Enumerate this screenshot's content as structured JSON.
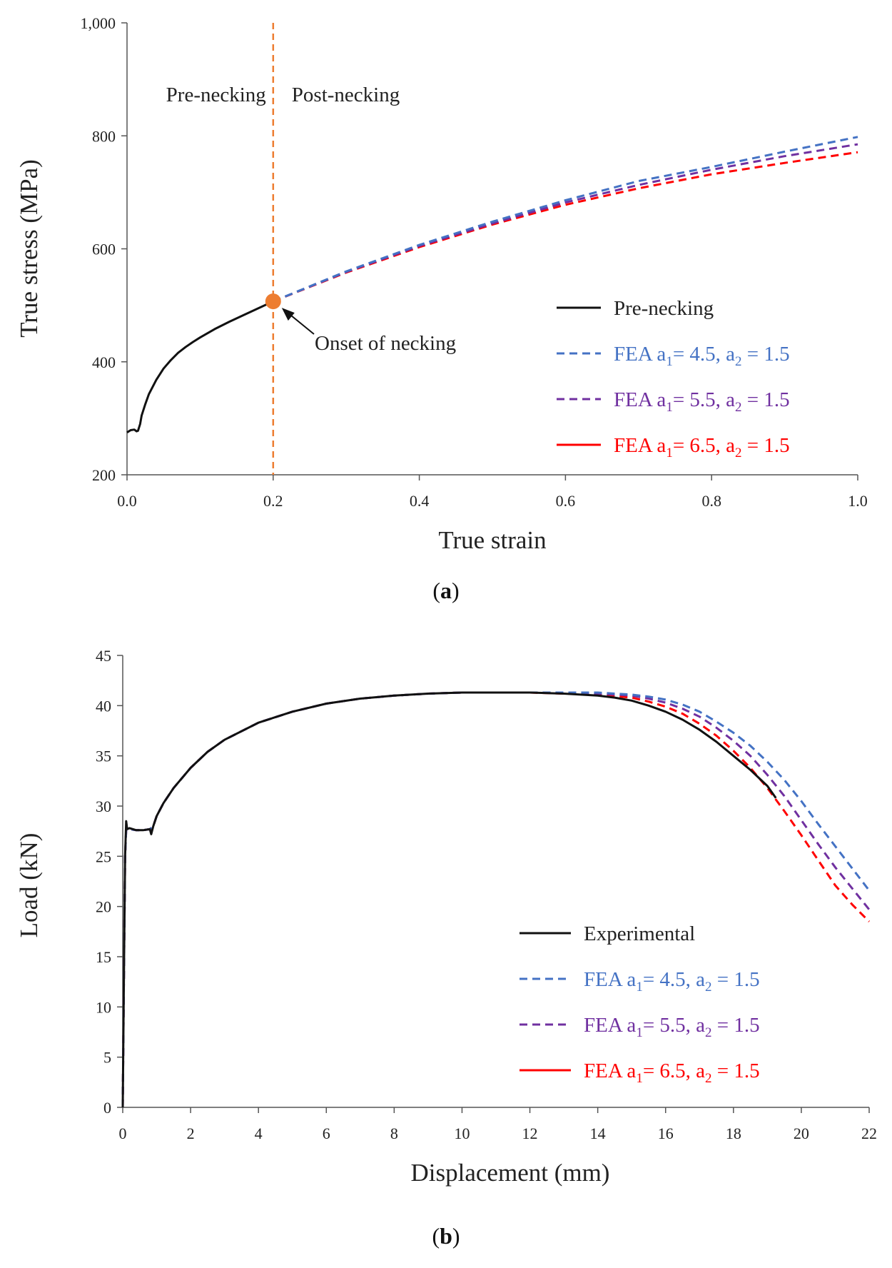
{
  "colors": {
    "black": "#111111",
    "blue": "#4472c4",
    "purple": "#7030a0",
    "red": "#ff0000",
    "orange": "#ed7d31"
  },
  "chart_data": [
    {
      "id": "a",
      "type": "line",
      "caption_label": "a",
      "xlabel": "True strain",
      "ylabel": "True stress (MPa)",
      "xlim": [
        0.0,
        1.0
      ],
      "ylim": [
        200,
        1000
      ],
      "x_ticks": [
        "0.0",
        "0.2",
        "0.4",
        "0.6",
        "0.8",
        "1.0"
      ],
      "x_tick_values": [
        0.0,
        0.2,
        0.4,
        0.6,
        0.8,
        1.0
      ],
      "y_ticks": [
        "200",
        "400",
        "600",
        "800",
        "1,000"
      ],
      "y_tick_values": [
        200,
        400,
        600,
        800,
        1000
      ],
      "region_labels": {
        "left": "Pre-necking",
        "right": "Post-necking"
      },
      "necking_line_x": 0.2,
      "necking_point": {
        "x": 0.2,
        "y": 507
      },
      "annotation": "Onset of necking",
      "series": [
        {
          "name": "Pre-necking",
          "legend": {
            "main": "Pre-necking",
            "parts": []
          },
          "color": "#111111",
          "dash": "solid",
          "x": [
            0.0,
            0.005,
            0.01,
            0.013,
            0.015,
            0.018,
            0.02,
            0.025,
            0.03,
            0.04,
            0.05,
            0.06,
            0.07,
            0.08,
            0.09,
            0.1,
            0.12,
            0.14,
            0.16,
            0.18,
            0.2
          ],
          "y": [
            275,
            279,
            280,
            277,
            278,
            290,
            305,
            325,
            343,
            368,
            388,
            403,
            416,
            426,
            435,
            443,
            458,
            471,
            483,
            495,
            507
          ]
        },
        {
          "name": "FEA a1= 4.5, a2 = 1.5",
          "legend": {
            "main": "FEA a",
            "parts": [
              [
                "1",
                "= 4.5, a"
              ],
              [
                "2",
                " = 1.5"
              ]
            ]
          },
          "color": "#4472c4",
          "dash": "dashed",
          "x": [
            0.2,
            0.3,
            0.4,
            0.5,
            0.6,
            0.7,
            0.8,
            0.9,
            1.0
          ],
          "y": [
            507,
            560,
            607,
            648,
            686,
            720,
            745,
            772,
            798
          ]
        },
        {
          "name": "FEA a1= 5.5, a2 = 1.5",
          "legend": {
            "main": "FEA a",
            "parts": [
              [
                "1",
                "= 5.5, a"
              ],
              [
                "2",
                " = 1.5"
              ]
            ]
          },
          "color": "#7030a0",
          "dash": "dashed",
          "x": [
            0.2,
            0.3,
            0.4,
            0.5,
            0.6,
            0.7,
            0.8,
            0.9,
            1.0
          ],
          "y": [
            507,
            559,
            605,
            645,
            682,
            713,
            740,
            764,
            785
          ]
        },
        {
          "name": "FEA a1= 6.5, a2 = 1.5",
          "legend": {
            "main": "FEA a",
            "parts": [
              [
                "1",
                "= 6.5, a"
              ],
              [
                "2",
                " = 1.5"
              ]
            ]
          },
          "color": "#ff0000",
          "dash": "dashed",
          "legend_dash": "solid",
          "x": [
            0.2,
            0.3,
            0.4,
            0.5,
            0.6,
            0.7,
            0.8,
            0.9,
            1.0
          ],
          "y": [
            507,
            558,
            603,
            643,
            678,
            707,
            732,
            752,
            771
          ]
        }
      ]
    },
    {
      "id": "b",
      "type": "line",
      "caption_label": "b",
      "xlabel": "Displacement (mm)",
      "ylabel": "Load (kN)",
      "xlim": [
        0,
        22
      ],
      "ylim": [
        0,
        45
      ],
      "x_ticks": [
        "0",
        "2",
        "4",
        "6",
        "8",
        "10",
        "12",
        "14",
        "16",
        "18",
        "20",
        "22"
      ],
      "x_tick_values": [
        0,
        2,
        4,
        6,
        8,
        10,
        12,
        14,
        16,
        18,
        20,
        22
      ],
      "y_ticks": [
        "0",
        "5",
        "10",
        "15",
        "20",
        "25",
        "30",
        "35",
        "40",
        "45"
      ],
      "y_tick_values": [
        0,
        5,
        10,
        15,
        20,
        25,
        30,
        35,
        40,
        45
      ],
      "series": [
        {
          "name": "Experimental",
          "legend": {
            "main": "Experimental",
            "parts": []
          },
          "color": "#111111",
          "dash": "solid",
          "x": [
            0,
            0.04,
            0.07,
            0.1,
            0.13,
            0.2,
            0.4,
            0.6,
            0.8,
            0.84,
            0.9,
            1.0,
            1.2,
            1.5,
            2.0,
            2.5,
            3.0,
            4.0,
            5.0,
            6.0,
            7.0,
            8.0,
            9.0,
            10.0,
            11.0,
            12.0,
            13.0,
            14.0,
            14.5,
            15.0,
            15.5,
            16.0,
            16.5,
            17.0,
            17.5,
            18.0,
            18.5,
            19.0,
            19.25
          ],
          "y": [
            0,
            15,
            25,
            28.5,
            27.7,
            27.8,
            27.6,
            27.6,
            27.7,
            27.2,
            28.0,
            29.0,
            30.3,
            31.8,
            33.8,
            35.4,
            36.6,
            38.3,
            39.4,
            40.2,
            40.7,
            41.0,
            41.2,
            41.3,
            41.3,
            41.3,
            41.2,
            41.0,
            40.8,
            40.5,
            40.0,
            39.4,
            38.6,
            37.6,
            36.4,
            35.0,
            33.6,
            32.0,
            30.8
          ]
        },
        {
          "name": "FEA a1= 4.5, a2 = 1.5",
          "legend": {
            "main": "FEA a",
            "parts": [
              [
                "1",
                "= 4.5, a"
              ],
              [
                "2",
                " = 1.5"
              ]
            ]
          },
          "color": "#4472c4",
          "dash": "dashed",
          "x": [
            0,
            0.04,
            0.07,
            0.1,
            0.2,
            0.4,
            0.6,
            0.8,
            0.9,
            1.0,
            1.2,
            1.5,
            2.0,
            2.5,
            3.0,
            4.0,
            5.0,
            6.0,
            7.0,
            8.0,
            9.0,
            10.0,
            11.0,
            12.0,
            13.0,
            14.0,
            15.0,
            15.5,
            16.0,
            16.5,
            17.0,
            17.5,
            18.0,
            18.5,
            19.0,
            19.5,
            20.0,
            20.5,
            21.0,
            21.5,
            22.0
          ],
          "y": [
            0,
            15,
            25,
            27.6,
            27.7,
            27.6,
            27.6,
            27.7,
            28.0,
            29.0,
            30.3,
            31.8,
            33.8,
            35.4,
            36.6,
            38.3,
            39.4,
            40.2,
            40.7,
            41.0,
            41.2,
            41.3,
            41.3,
            41.3,
            41.3,
            41.3,
            41.1,
            40.9,
            40.6,
            40.1,
            39.4,
            38.4,
            37.3,
            36.0,
            34.4,
            32.6,
            30.5,
            28.2,
            26.0,
            23.8,
            21.6
          ]
        },
        {
          "name": "FEA a1= 5.5, a2 = 1.5",
          "legend": {
            "main": "FEA a",
            "parts": [
              [
                "1",
                "= 5.5, a"
              ],
              [
                "2",
                " = 1.5"
              ]
            ]
          },
          "color": "#7030a0",
          "dash": "dashed",
          "x": [
            0,
            0.04,
            0.07,
            0.1,
            0.2,
            0.4,
            0.6,
            0.8,
            0.9,
            1.0,
            1.2,
            1.5,
            2.0,
            2.5,
            3.0,
            4.0,
            5.0,
            6.0,
            7.0,
            8.0,
            9.0,
            10.0,
            11.0,
            12.0,
            13.0,
            14.0,
            15.0,
            15.5,
            16.0,
            16.5,
            17.0,
            17.5,
            18.0,
            18.5,
            19.0,
            19.5,
            20.0,
            20.5,
            21.0,
            21.5,
            22.0
          ],
          "y": [
            0,
            15,
            25,
            27.6,
            27.7,
            27.6,
            27.6,
            27.7,
            28.0,
            29.0,
            30.3,
            31.8,
            33.8,
            35.4,
            36.6,
            38.3,
            39.4,
            40.2,
            40.7,
            41.0,
            41.2,
            41.3,
            41.3,
            41.3,
            41.3,
            41.2,
            41.0,
            40.7,
            40.3,
            39.7,
            38.9,
            37.8,
            36.5,
            35.0,
            33.1,
            31.0,
            28.6,
            26.2,
            23.9,
            21.8,
            19.7
          ]
        },
        {
          "name": "FEA a1= 6.5, a2 = 1.5",
          "legend": {
            "main": "FEA a",
            "parts": [
              [
                "1",
                "= 6.5, a"
              ],
              [
                "2",
                " = 1.5"
              ]
            ]
          },
          "color": "#ff0000",
          "dash": "dashed",
          "legend_dash": "solid",
          "x": [
            0,
            0.04,
            0.07,
            0.1,
            0.2,
            0.4,
            0.6,
            0.8,
            0.9,
            1.0,
            1.2,
            1.5,
            2.0,
            2.5,
            3.0,
            4.0,
            5.0,
            6.0,
            7.0,
            8.0,
            9.0,
            10.0,
            11.0,
            12.0,
            13.0,
            14.0,
            15.0,
            15.5,
            16.0,
            16.5,
            17.0,
            17.5,
            18.0,
            18.5,
            19.0,
            19.5,
            20.0,
            20.5,
            21.0,
            21.5,
            22.0
          ],
          "y": [
            0,
            15,
            25,
            27.6,
            27.7,
            27.6,
            27.6,
            27.7,
            28.0,
            29.0,
            30.3,
            31.8,
            33.8,
            35.4,
            36.6,
            38.3,
            39.4,
            40.2,
            40.7,
            41.0,
            41.2,
            41.3,
            41.3,
            41.3,
            41.2,
            41.1,
            40.8,
            40.4,
            39.9,
            39.2,
            38.2,
            37.0,
            35.5,
            33.8,
            31.8,
            29.5,
            27.1,
            24.6,
            22.1,
            20.2,
            18.5
          ]
        }
      ]
    }
  ]
}
